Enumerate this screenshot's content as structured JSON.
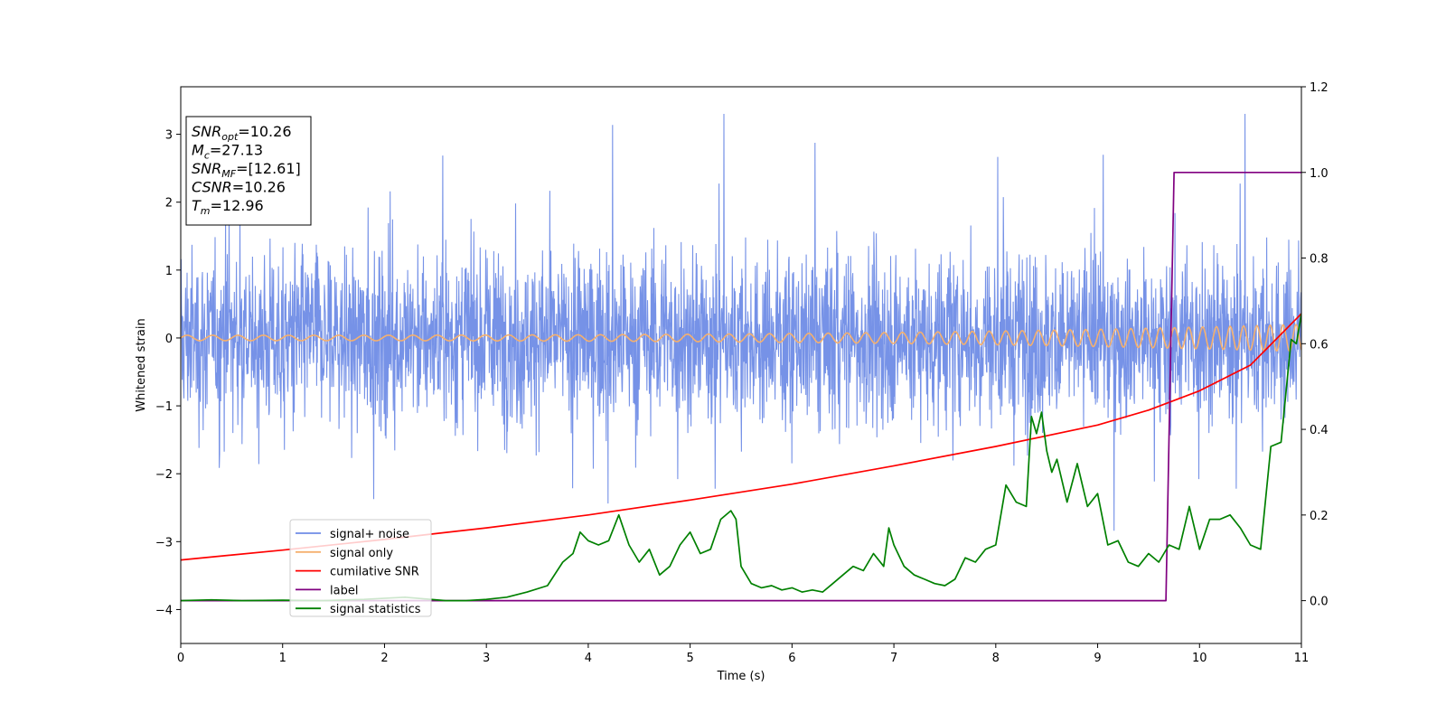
{
  "chart_data": {
    "type": "line",
    "xlabel": "Time (s)",
    "ylabel": "Whitened strain",
    "xlim": [
      0,
      11
    ],
    "ylim": [
      -4.5,
      3.7
    ],
    "y2lim": [
      -0.1,
      1.2
    ],
    "xticks": [
      "0",
      "1",
      "2",
      "3",
      "4",
      "5",
      "6",
      "7",
      "8",
      "9",
      "10",
      "11"
    ],
    "yticks": [
      "−4",
      "−3",
      "−2",
      "−1",
      "0",
      "1",
      "2",
      "3"
    ],
    "y2ticks": [
      "0.0",
      "0.2",
      "0.4",
      "0.6",
      "0.8",
      "1.0",
      "1.2"
    ],
    "grid": false,
    "legend_position": "lower-left",
    "annotation": [
      {
        "prefix": "SNR",
        "sub": "opt",
        "value": "=10.26"
      },
      {
        "prefix": "M",
        "sub": "c",
        "value": "=27.13"
      },
      {
        "prefix": "SNR",
        "sub": "MF",
        "value": "=[12.61]"
      },
      {
        "prefix": "CSNR",
        "sub": "",
        "value": "=10.26"
      },
      {
        "prefix": "T",
        "sub": "m",
        "value": "=12.96"
      }
    ],
    "series": [
      {
        "name": "signal+ noise",
        "color": "#6f8ce6",
        "axis": "left",
        "kind": "noisy band",
        "center": 0.0,
        "typical_range": [
          -2.0,
          2.1
        ],
        "extremes": [
          -3.4,
          3.3
        ]
      },
      {
        "name": "signal only",
        "color": "#f5b06e",
        "axis": "left",
        "kind": "chirp",
        "amplitude_start": 0.04,
        "amplitude_end": 0.2,
        "cycles_per_s_start": 4,
        "cycles_per_s_end": 8
      },
      {
        "name": "cumilative SNR",
        "color": "#ff0000",
        "axis": "right",
        "x": [
          0,
          1,
          2,
          3,
          4,
          5,
          6,
          7,
          8,
          9,
          9.5,
          10,
          10.5,
          11
        ],
        "y": [
          0.095,
          0.118,
          0.143,
          0.17,
          0.2,
          0.235,
          0.272,
          0.315,
          0.36,
          0.41,
          0.445,
          0.49,
          0.55,
          0.67
        ]
      },
      {
        "name": "label",
        "color": "#800080",
        "axis": "right",
        "x": [
          0,
          9.67,
          9.75,
          11
        ],
        "y": [
          0,
          0,
          1,
          1
        ]
      },
      {
        "name": "signal statistics",
        "color": "#008000",
        "axis": "right",
        "x": [
          0,
          0.3,
          0.6,
          1.0,
          1.4,
          1.8,
          2.2,
          2.6,
          2.8,
          3.0,
          3.2,
          3.4,
          3.6,
          3.75,
          3.85,
          3.92,
          4.0,
          4.1,
          4.2,
          4.3,
          4.4,
          4.5,
          4.6,
          4.7,
          4.8,
          4.9,
          5.0,
          5.1,
          5.2,
          5.3,
          5.4,
          5.45,
          5.5,
          5.6,
          5.7,
          5.8,
          5.9,
          6.0,
          6.1,
          6.2,
          6.3,
          6.4,
          6.5,
          6.6,
          6.7,
          6.8,
          6.9,
          6.95,
          7.0,
          7.1,
          7.2,
          7.3,
          7.4,
          7.5,
          7.6,
          7.7,
          7.8,
          7.9,
          8.0,
          8.1,
          8.2,
          8.3,
          8.35,
          8.4,
          8.45,
          8.5,
          8.55,
          8.6,
          8.7,
          8.8,
          8.9,
          9.0,
          9.1,
          9.2,
          9.3,
          9.4,
          9.5,
          9.6,
          9.7,
          9.8,
          9.9,
          10.0,
          10.1,
          10.2,
          10.3,
          10.4,
          10.5,
          10.6,
          10.7,
          10.8,
          10.9,
          10.95,
          11.0
        ],
        "y": [
          0.0,
          0.002,
          0.0,
          0.001,
          0.0,
          0.003,
          0.008,
          0.0,
          0.0,
          0.003,
          0.008,
          0.02,
          0.035,
          0.09,
          0.11,
          0.16,
          0.14,
          0.13,
          0.14,
          0.2,
          0.13,
          0.09,
          0.12,
          0.06,
          0.08,
          0.13,
          0.16,
          0.11,
          0.12,
          0.19,
          0.21,
          0.19,
          0.08,
          0.04,
          0.03,
          0.035,
          0.025,
          0.03,
          0.02,
          0.025,
          0.02,
          0.04,
          0.06,
          0.08,
          0.07,
          0.11,
          0.08,
          0.17,
          0.13,
          0.08,
          0.06,
          0.05,
          0.04,
          0.035,
          0.05,
          0.1,
          0.09,
          0.12,
          0.13,
          0.27,
          0.23,
          0.22,
          0.43,
          0.39,
          0.44,
          0.35,
          0.3,
          0.33,
          0.23,
          0.32,
          0.22,
          0.25,
          0.13,
          0.14,
          0.09,
          0.08,
          0.11,
          0.09,
          0.13,
          0.12,
          0.22,
          0.12,
          0.19,
          0.19,
          0.2,
          0.17,
          0.13,
          0.12,
          0.36,
          0.37,
          0.61,
          0.6,
          0.67
        ]
      }
    ]
  }
}
